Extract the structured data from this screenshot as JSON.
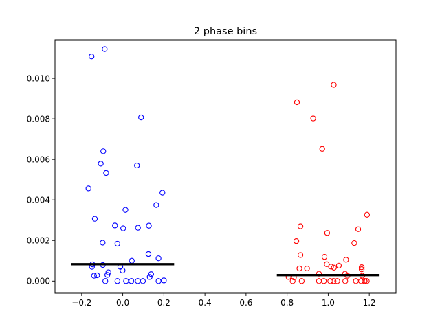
{
  "chart_data": {
    "type": "scatter",
    "title": "2 phase bins",
    "xlabel": "",
    "ylabel": "",
    "xlim": [
      -0.33,
      1.33
    ],
    "ylim": [
      -0.0006,
      0.0119
    ],
    "xticks": [
      -0.2,
      0.0,
      0.2,
      0.4,
      0.6,
      0.8,
      1.0,
      1.2
    ],
    "xtick_labels": [
      "−0.2",
      "0.0",
      "0.2",
      "0.4",
      "0.6",
      "0.8",
      "1.0",
      "1.2"
    ],
    "yticks": [
      0.0,
      0.002,
      0.004,
      0.006,
      0.008,
      0.01
    ],
    "ytick_labels": [
      "0.000",
      "0.002",
      "0.004",
      "0.006",
      "0.008",
      "0.010"
    ],
    "grid": false,
    "legend": "none",
    "series": [
      {
        "color": "#0000ff",
        "marker": "open-circle",
        "x": [
          -0.152,
          -0.088,
          0.089,
          -0.095,
          -0.081,
          0.069,
          -0.167,
          -0.107,
          0.193,
          0.163,
          0.013,
          -0.136,
          -0.038,
          0.074,
          0.127,
          0.002,
          -0.098,
          -0.026,
          0.125,
          0.174,
          -0.148,
          -0.097,
          -0.012,
          0.044,
          -0.07,
          -0.075,
          0.138,
          -0.14,
          -0.125,
          -0.001,
          -0.085,
          -0.026,
          0.016,
          0.042,
          0.073,
          0.098,
          0.131,
          0.174,
          0.2,
          -0.15
        ],
        "y": [
          0.01108,
          0.01144,
          0.00807,
          0.0064,
          0.00533,
          0.0057,
          0.00457,
          0.00579,
          0.00436,
          0.00375,
          0.00351,
          0.00307,
          0.00274,
          0.00263,
          0.00273,
          0.0026,
          0.00189,
          0.00184,
          0.00133,
          0.00112,
          0.00082,
          0.00079,
          0.0007,
          0.001,
          0.00043,
          0.0003,
          0.00034,
          0.00026,
          0.00028,
          0.00052,
          0.0,
          0.0,
          0.0,
          0.0,
          0.0,
          0.0,
          0.0002,
          0.0,
          3e-05,
          0.0007
        ]
      },
      {
        "color": "#ff0000",
        "marker": "open-circle",
        "x": [
          0.848,
          1.027,
          0.927,
          0.971,
          1.189,
          0.865,
          0.995,
          1.146,
          0.845,
          1.127,
          0.865,
          0.982,
          1.087,
          0.993,
          0.86,
          0.897,
          1.052,
          1.028,
          1.163,
          1.014,
          1.163,
          0.955,
          1.082,
          0.807,
          1.094,
          0.827,
          0.833,
          0.871,
          0.979,
          1.01,
          1.044,
          1.135,
          1.177,
          1.16,
          1.188,
          1.166,
          1.178,
          0.955,
          1.026,
          1.083
        ],
        "y": [
          0.00882,
          0.00968,
          0.00802,
          0.00652,
          0.00327,
          0.0027,
          0.00237,
          0.00256,
          0.00197,
          0.00187,
          0.00128,
          0.00119,
          0.00105,
          0.00083,
          0.00062,
          0.00062,
          0.00076,
          0.00066,
          0.00068,
          0.00071,
          0.00058,
          0.00036,
          0.00036,
          0.0002,
          0.00026,
          0.0,
          0.00018,
          0.0,
          0.0,
          0.0,
          0.0,
          0.0,
          0.0,
          0.0,
          0.0,
          0.00026,
          0.0,
          0.0,
          0.0,
          0.0
        ]
      }
    ],
    "median_lines": [
      {
        "x": [
          -0.25,
          0.25
        ],
        "y": 0.00083,
        "color": "#000000"
      },
      {
        "x": [
          0.75,
          1.25
        ],
        "y": 0.00029,
        "color": "#000000"
      }
    ]
  }
}
